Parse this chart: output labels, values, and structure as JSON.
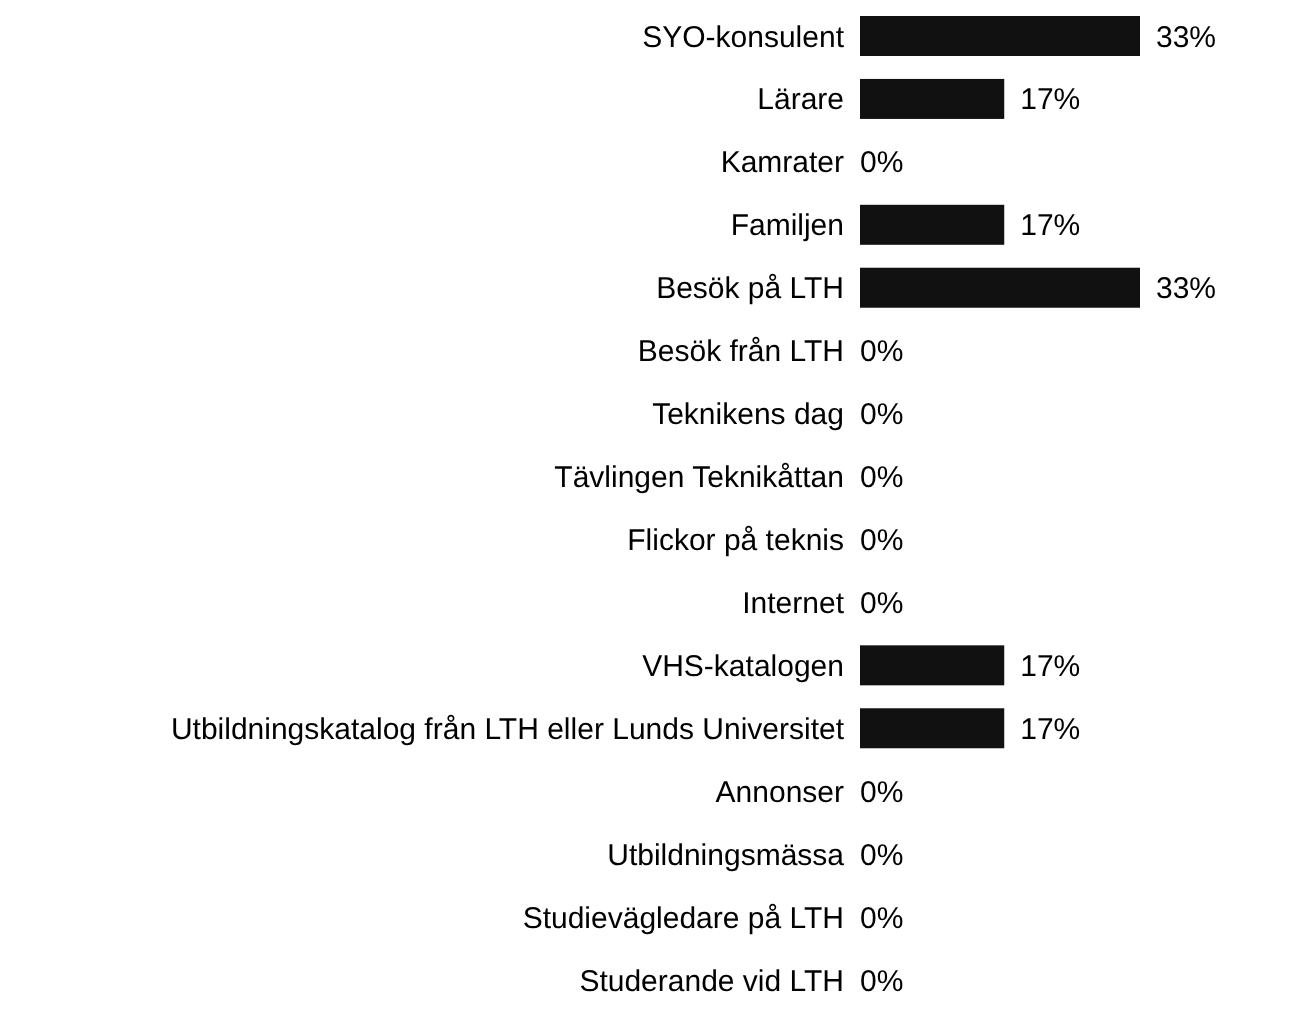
{
  "chart_data": {
    "type": "bar",
    "orientation": "horizontal",
    "categories": [
      "SYO-konsulent",
      "Lärare",
      "Kamrater",
      "Familjen",
      "Besök på LTH",
      "Besök från LTH",
      "Teknikens dag",
      "Tävlingen Teknikåttan",
      "Flickor på teknis",
      "Internet",
      "VHS-katalogen",
      "Utbildningskatalog från LTH eller Lunds Universitet",
      "Annonser",
      "Utbildningsmässa",
      "Studievägledare på LTH",
      "Studerande vid LTH"
    ],
    "values": [
      33,
      17,
      0,
      17,
      33,
      0,
      0,
      0,
      0,
      0,
      17,
      17,
      0,
      0,
      0,
      0
    ],
    "value_labels": [
      "33%",
      "17%",
      "0%",
      "17%",
      "33%",
      "0%",
      "0%",
      "0%",
      "0%",
      "0%",
      "17%",
      "17%",
      "0%",
      "0%",
      "0%",
      "0%"
    ],
    "color": "#111111"
  }
}
